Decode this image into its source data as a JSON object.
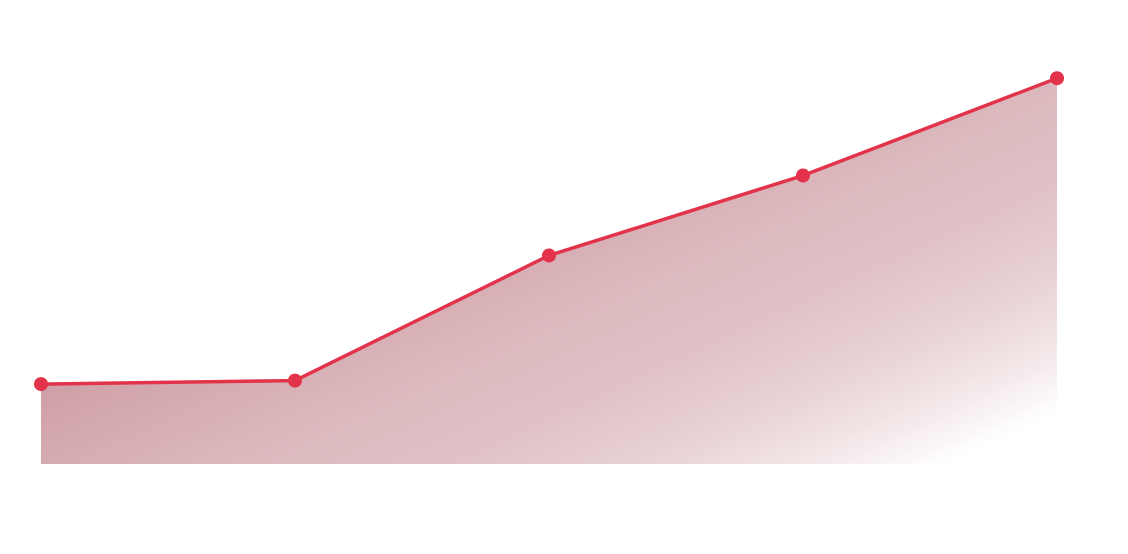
{
  "chart_data": {
    "type": "area",
    "x": [
      0,
      1,
      2,
      3,
      4
    ],
    "series": [
      {
        "values": [
          20,
          21,
          57,
          80,
          108
        ]
      }
    ],
    "ylim": [
      -3,
      119
    ],
    "grid": false,
    "colors": {
      "line": "#e2334a",
      "fill_start": "#c2868e",
      "fill_end": "#ffffff"
    }
  }
}
